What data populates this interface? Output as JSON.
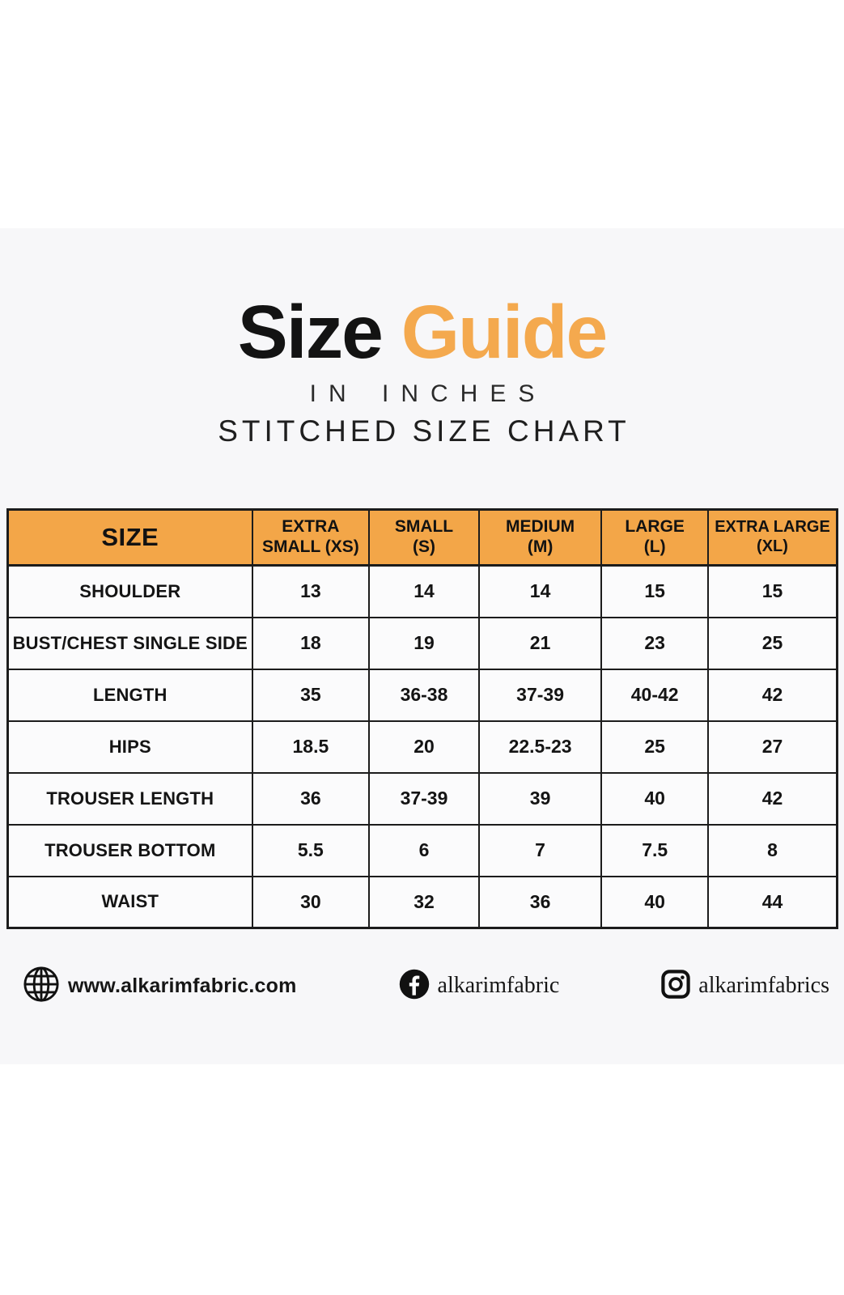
{
  "title": {
    "word_black": "Size",
    "word_orange": "Guide",
    "subtitle": "IN INCHES",
    "subheading": "STITCHED SIZE CHART"
  },
  "colors": {
    "accent_orange": "#F4A94E",
    "header_orange": "#F3A648",
    "band_background": "#F7F7F9",
    "table_border": "#1C1C1C",
    "text": "#1B1B1B"
  },
  "chart_data": {
    "type": "table",
    "title": "Size Guide",
    "units": "IN INCHES",
    "chart_label": "STITCHED SIZE CHART",
    "columns": [
      "SIZE",
      "EXTRA SMALL (XS)",
      "SMALL (S)",
      "MEDIUM (M)",
      "LARGE (L)",
      "EXTRA LARGE (XL)"
    ],
    "rows": [
      {
        "label": "SHOULDER",
        "values": [
          "13",
          "14",
          "14",
          "15",
          "15"
        ]
      },
      {
        "label": "BUST/CHEST SINGLE SIDE",
        "values": [
          "18",
          "19",
          "21",
          "23",
          "25"
        ]
      },
      {
        "label": "LENGTH",
        "values": [
          "35",
          "36-38",
          "37-39",
          "40-42",
          "42"
        ]
      },
      {
        "label": "HIPS",
        "values": [
          "18.5",
          "20",
          "22.5-23",
          "25",
          "27"
        ]
      },
      {
        "label": "TROUSER LENGTH",
        "values": [
          "36",
          "37-39",
          "39",
          "40",
          "42"
        ]
      },
      {
        "label": "TROUSER BOTTOM",
        "values": [
          "5.5",
          "6",
          "7",
          "7.5",
          "8"
        ]
      },
      {
        "label": "WAIST",
        "values": [
          "30",
          "32",
          "36",
          "40",
          "44"
        ]
      }
    ]
  },
  "table_display": {
    "header_lines": [
      [
        "SIZE"
      ],
      [
        "EXTRA",
        "SMALL (XS)"
      ],
      [
        "SMALL",
        "(S)"
      ],
      [
        "MEDIUM",
        "(M)"
      ],
      [
        "LARGE",
        "(L)"
      ],
      [
        "EXTRA LARGE",
        "(XL)"
      ]
    ]
  },
  "footer": {
    "website": "www.alkarimfabric.com",
    "facebook": "alkarimfabric",
    "instagram": "alkarimfabrics"
  }
}
